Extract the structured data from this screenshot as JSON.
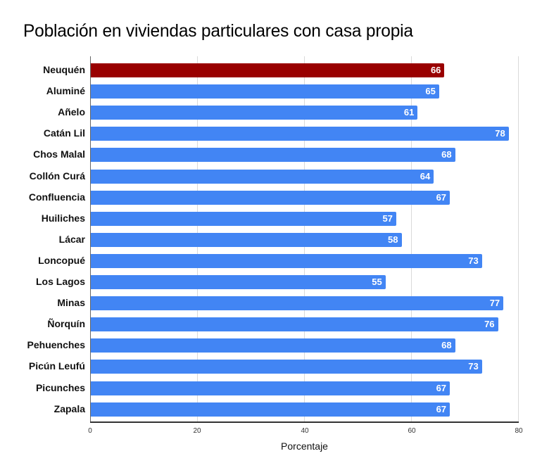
{
  "chart_data": {
    "type": "bar",
    "orientation": "horizontal",
    "title": "Población en viviendas particulares con casa propia",
    "xlabel": "Porcentaje",
    "ylabel": "",
    "xlim": [
      0,
      80
    ],
    "x_ticks": [
      "0",
      "20",
      "40",
      "60",
      "80"
    ],
    "grid": true,
    "legend": null,
    "highlight_color": "#990000",
    "bar_color": "#4285f4",
    "categories": [
      "Neuquén",
      "Aluminé",
      "Añelo",
      "Catán Lil",
      "Chos Malal",
      "Collón Curá",
      "Confluencia",
      "Huiliches",
      "Lácar",
      "Loncopué",
      "Los Lagos",
      "Minas",
      "Ñorquín",
      "Pehuenches",
      "Picún Leufú",
      "Picunches",
      "Zapala"
    ],
    "values": [
      66,
      65,
      61,
      78,
      68,
      64,
      67,
      57,
      58,
      73,
      55,
      77,
      76,
      68,
      73,
      67,
      67
    ],
    "highlighted": [
      "Neuquén"
    ]
  },
  "labels": {
    "title": "Población en viviendas particulares con casa propia",
    "xlabel": "Porcentaje",
    "ticks": [
      "0",
      "20",
      "40",
      "60",
      "80"
    ]
  }
}
